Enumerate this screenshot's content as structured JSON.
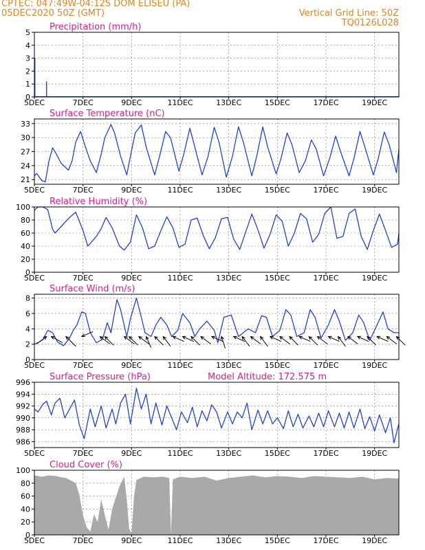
{
  "header": {
    "left_line1": "CPTEC:   047:49W-04:12S   DOM ELISEU (PA)",
    "left_line2": "05DEC2020 50Z (GMT)",
    "right_line1": "Vertical Grid Line: 50Z",
    "right_line2": "TQ0126L028"
  },
  "colors": {
    "header": "#e8821e",
    "panel_title": "#e5198a",
    "line": "#1f3fe0",
    "cloud": "#a9a9a9",
    "grid": "#777777",
    "wind_arrow": "#000000"
  },
  "chart_data": [
    {
      "id": "precip",
      "type": "bar",
      "title": "Precipitation (mm/h)",
      "ylim": [
        0,
        5
      ],
      "yticks": [
        0,
        1,
        2,
        3,
        4,
        5
      ],
      "xlim": [
        0,
        15
      ],
      "xtick_labels": [
        "5DEC",
        "7DEC",
        "9DEC",
        "11DEC",
        "13DEC",
        "15DEC",
        "17DEC",
        "19DEC"
      ],
      "xtick_positions": [
        0,
        2,
        4,
        6,
        8,
        10,
        12,
        14
      ],
      "x": [
        0.02,
        0.5,
        12.0
      ],
      "values": [
        3.0,
        1.2,
        0.08
      ]
    },
    {
      "id": "temp",
      "type": "line",
      "title": "Surface Temperature (nC)",
      "ylim": [
        20,
        34
      ],
      "yticks": [
        21,
        24,
        27,
        30,
        33
      ],
      "xlim": [
        0,
        15
      ],
      "xtick_labels": [
        "5DEC",
        "7DEC",
        "9DEC",
        "11DEC",
        "13DEC",
        "15DEC",
        "17DEC",
        "19DEC"
      ],
      "xtick_positions": [
        0,
        2,
        4,
        6,
        8,
        10,
        12,
        14
      ],
      "x": [
        0,
        0.1,
        0.3,
        0.45,
        0.6,
        0.75,
        0.9,
        1.1,
        1.4,
        1.55,
        1.7,
        1.9,
        2.1,
        2.3,
        2.55,
        2.75,
        2.9,
        3.15,
        3.3,
        3.55,
        3.8,
        3.95,
        4.15,
        4.4,
        4.6,
        4.95,
        5.15,
        5.4,
        5.6,
        5.95,
        6.15,
        6.4,
        6.6,
        6.9,
        7.15,
        7.4,
        7.6,
        7.9,
        8.15,
        8.4,
        8.6,
        8.95,
        9.15,
        9.4,
        9.6,
        9.95,
        10.15,
        10.4,
        10.6,
        10.9,
        11.15,
        11.4,
        11.6,
        11.9,
        12.15,
        12.4,
        12.6,
        12.95,
        13.15,
        13.4,
        13.6,
        13.95,
        14.15,
        14.4,
        14.6,
        14.9,
        15.0
      ],
      "values": [
        21.8,
        22.3,
        20.8,
        20.5,
        25.0,
        27.8,
        26.5,
        24.5,
        23.0,
        25.0,
        29.0,
        31.3,
        28.0,
        25.0,
        22.5,
        26.5,
        30.0,
        32.8,
        31.0,
        26.0,
        22.0,
        26.0,
        31.0,
        32.7,
        28.0,
        22.0,
        26.0,
        31.3,
        30.0,
        22.8,
        26.5,
        32.0,
        28.0,
        22.0,
        26.0,
        32.2,
        29.0,
        21.5,
        26.0,
        32.3,
        29.0,
        21.8,
        26.0,
        32.3,
        28.0,
        22.2,
        25.5,
        31.0,
        28.5,
        22.5,
        25.0,
        29.5,
        27.5,
        21.8,
        25.5,
        30.3,
        27.0,
        21.8,
        25.5,
        31.3,
        28.0,
        22.0,
        25.5,
        31.2,
        28.5,
        22.5,
        27.5
      ]
    },
    {
      "id": "rh",
      "type": "line",
      "title": "Relative Humidity (%)",
      "ylim": [
        0,
        100
      ],
      "yticks": [
        0,
        20,
        40,
        60,
        80,
        100
      ],
      "xlim": [
        0,
        15
      ],
      "xtick_labels": [
        "5DEC",
        "7DEC",
        "9DEC",
        "11DEC",
        "13DEC",
        "15DEC",
        "17DEC",
        "19DEC"
      ],
      "xtick_positions": [
        0,
        2,
        4,
        6,
        8,
        10,
        12,
        14
      ],
      "x": [
        0,
        0.15,
        0.35,
        0.55,
        0.75,
        0.85,
        1.1,
        1.45,
        1.7,
        2.0,
        2.2,
        2.55,
        2.75,
        2.95,
        3.2,
        3.5,
        3.7,
        3.95,
        4.2,
        4.45,
        4.7,
        4.95,
        5.2,
        5.45,
        5.7,
        5.95,
        6.2,
        6.45,
        6.7,
        6.95,
        7.2,
        7.45,
        7.7,
        7.95,
        8.2,
        8.45,
        8.7,
        8.95,
        9.2,
        9.45,
        9.7,
        9.95,
        10.2,
        10.45,
        10.7,
        10.95,
        11.2,
        11.45,
        11.7,
        11.95,
        12.2,
        12.45,
        12.7,
        12.95,
        13.2,
        13.45,
        13.7,
        13.95,
        14.2,
        14.45,
        14.7,
        14.95,
        15.0
      ],
      "values": [
        95,
        100,
        100,
        96,
        66,
        60,
        70,
        84,
        92,
        64,
        40,
        55,
        67,
        84,
        68,
        40,
        34,
        46,
        88,
        68,
        36,
        40,
        63,
        85,
        68,
        38,
        43,
        80,
        83,
        56,
        36,
        53,
        82,
        84,
        51,
        35,
        62,
        89,
        65,
        37,
        58,
        88,
        78,
        40,
        60,
        90,
        82,
        46,
        58,
        90,
        100,
        52,
        55,
        90,
        97,
        55,
        35,
        64,
        89,
        64,
        38,
        43,
        60
      ]
    },
    {
      "id": "wind",
      "type": "line",
      "title": "Surface Wind (m/s)",
      "ylim": [
        0,
        8.5
      ],
      "yticks": [
        0,
        2,
        4,
        6,
        8
      ],
      "xlim": [
        0,
        15
      ],
      "xtick_labels": [
        "5DEC",
        "7DEC",
        "9DEC",
        "11DEC",
        "13DEC",
        "15DEC",
        "17DEC",
        "19DEC"
      ],
      "xtick_positions": [
        0,
        2,
        4,
        6,
        8,
        10,
        12,
        14
      ],
      "x": [
        0,
        0.15,
        0.35,
        0.55,
        0.75,
        0.95,
        1.2,
        1.45,
        1.6,
        1.75,
        1.95,
        2.1,
        2.3,
        2.55,
        2.8,
        3.0,
        3.15,
        3.4,
        3.55,
        3.8,
        3.95,
        4.2,
        4.4,
        4.55,
        4.8,
        5.0,
        5.2,
        5.45,
        5.65,
        5.9,
        6.1,
        6.4,
        6.6,
        6.8,
        7.1,
        7.4,
        7.55,
        7.8,
        8.1,
        8.4,
        8.6,
        8.8,
        9.1,
        9.35,
        9.55,
        9.8,
        10.1,
        10.35,
        10.55,
        10.8,
        11.1,
        11.35,
        11.55,
        11.8,
        12.1,
        12.35,
        12.55,
        12.8,
        13.1,
        13.35,
        13.55,
        13.8,
        14.1,
        14.35,
        14.55,
        14.8,
        15.0
      ],
      "values": [
        2.0,
        2.2,
        2.6,
        3.8,
        3.5,
        2.3,
        1.8,
        2.8,
        3.8,
        4.5,
        6.2,
        6.0,
        3.5,
        2.2,
        2.6,
        4.8,
        3.5,
        7.8,
        6.5,
        3.0,
        5.3,
        8.0,
        5.5,
        3.5,
        3.0,
        4.5,
        5.5,
        4.5,
        3.0,
        3.8,
        6.0,
        4.8,
        3.0,
        4.0,
        5.0,
        3.8,
        2.2,
        5.5,
        5.8,
        3.0,
        3.5,
        4.0,
        3.5,
        5.7,
        5.5,
        3.0,
        3.8,
        6.5,
        5.8,
        3.0,
        3.5,
        6.5,
        5.5,
        2.8,
        4.5,
        6.5,
        5.0,
        2.5,
        3.5,
        5.8,
        4.8,
        2.5,
        4.5,
        6.2,
        4.0,
        3.5,
        3.5
      ],
      "arrows_x": [
        0.5,
        0.7,
        1.3,
        1.95,
        2.7,
        2.9,
        3.7,
        3.9,
        4.3,
        4.6,
        4.95,
        5.3,
        5.7,
        6.1,
        6.45,
        6.85,
        7.3,
        7.7,
        8.2,
        8.55,
        8.9,
        9.3,
        9.7,
        10.1,
        10.5,
        10.9,
        11.3,
        11.65,
        12.1,
        12.5,
        12.9,
        13.3,
        13.7,
        14.1,
        14.5,
        14.9
      ],
      "arrows_u": [
        -0.8,
        0.9,
        0.8,
        0.9,
        0.8,
        0.7,
        0.8,
        0.7,
        0.8,
        0.4,
        0.7,
        0.6,
        0.9,
        0.9,
        0.7,
        0.8,
        0.9,
        0.3,
        0.9,
        0.6,
        0.8,
        0.6,
        0.9,
        0.8,
        0.7,
        0.9,
        0.7,
        0.8,
        0.9,
        0.6,
        0.8,
        0.9,
        0.7,
        0.9,
        0.8,
        0.7
      ],
      "arrows_v": [
        -0.6,
        -0.5,
        -0.8,
        0.4,
        -0.6,
        -0.7,
        -0.6,
        -0.7,
        -0.6,
        -0.9,
        -0.7,
        -0.8,
        -0.4,
        -0.4,
        -0.7,
        -0.6,
        -0.4,
        -0.95,
        -0.4,
        -0.8,
        -0.6,
        -0.8,
        -0.4,
        -0.6,
        -0.7,
        -0.4,
        -0.7,
        -0.6,
        -0.4,
        -0.8,
        -0.6,
        -0.4,
        -0.7,
        -0.4,
        -0.6,
        -0.7
      ]
    },
    {
      "id": "pressure",
      "type": "line",
      "title": "Surface Pressure (hPa)",
      "annotation": "Model Altitude: 172.575 m",
      "ylim": [
        985,
        996
      ],
      "yticks": [
        986,
        988,
        990,
        992,
        994,
        996
      ],
      "xlim": [
        0,
        15
      ],
      "xtick_labels": [
        "5DEC",
        "7DEC",
        "9DEC",
        "11DEC",
        "13DEC",
        "15DEC",
        "17DEC",
        "19DEC"
      ],
      "xtick_positions": [
        0,
        2,
        4,
        6,
        8,
        10,
        12,
        14
      ],
      "x": [
        0,
        0.15,
        0.35,
        0.5,
        0.7,
        0.85,
        1.05,
        1.25,
        1.45,
        1.65,
        1.85,
        2.05,
        2.3,
        2.5,
        2.75,
        2.95,
        3.2,
        3.35,
        3.55,
        3.75,
        3.95,
        4.2,
        4.4,
        4.6,
        4.8,
        5.0,
        5.25,
        5.45,
        5.65,
        5.85,
        6.05,
        6.3,
        6.5,
        6.7,
        6.9,
        7.1,
        7.3,
        7.5,
        7.7,
        7.95,
        8.15,
        8.35,
        8.55,
        8.75,
        8.95,
        9.2,
        9.4,
        9.6,
        9.8,
        10.0,
        10.25,
        10.45,
        10.65,
        10.85,
        11.05,
        11.3,
        11.5,
        11.7,
        11.9,
        12.1,
        12.35,
        12.55,
        12.75,
        12.95,
        13.15,
        13.4,
        13.6,
        13.8,
        14.0,
        14.2,
        14.45,
        14.65,
        14.8,
        15.0
      ],
      "values": [
        991.5,
        991.0,
        992.3,
        992.8,
        990.5,
        992.5,
        993.3,
        990.0,
        991.5,
        993.0,
        988.8,
        986.5,
        991.5,
        988.5,
        992.0,
        988.3,
        991.5,
        989.0,
        992.5,
        994.0,
        989.0,
        995.0,
        991.5,
        994.0,
        989.0,
        992.5,
        988.8,
        992.0,
        990.0,
        988.0,
        991.0,
        989.2,
        991.8,
        988.5,
        991.2,
        989.5,
        992.2,
        991.0,
        988.3,
        991.0,
        989.0,
        991.0,
        990.0,
        992.5,
        988.0,
        991.3,
        989.0,
        991.2,
        989.0,
        990.0,
        988.2,
        991.2,
        988.5,
        990.6,
        988.3,
        990.3,
        988.5,
        990.8,
        988.5,
        991.2,
        988.5,
        990.8,
        988.3,
        991.0,
        988.3,
        991.5,
        988.2,
        990.2,
        987.8,
        990.5,
        987.5,
        990.0,
        985.8,
        989.0
      ]
    },
    {
      "id": "cloud",
      "type": "area",
      "title": "Cloud Cover (%)",
      "ylim": [
        0,
        100
      ],
      "yticks": [
        0,
        20,
        40,
        60,
        80,
        100
      ],
      "xlim": [
        0,
        15
      ],
      "xtick_labels": [
        "5DEC",
        "7DEC",
        "9DEC",
        "11DEC",
        "13DEC",
        "15DEC",
        "17DEC",
        "19DEC"
      ],
      "xtick_positions": [
        0,
        2,
        4,
        6,
        8,
        10,
        12,
        14
      ],
      "x": [
        0,
        0.3,
        0.6,
        0.9,
        1.1,
        1.3,
        1.5,
        1.7,
        1.85,
        2.0,
        2.15,
        2.3,
        2.45,
        2.6,
        2.75,
        2.9,
        3.05,
        3.2,
        3.35,
        3.5,
        3.7,
        3.8,
        3.9,
        4.0,
        4.1,
        4.2,
        4.5,
        4.9,
        5.3,
        5.55,
        5.62,
        5.7,
        6.0,
        6.5,
        7.0,
        7.5,
        8.0,
        8.5,
        9.0,
        9.5,
        10.0,
        10.5,
        11.0,
        11.5,
        12.0,
        12.5,
        13.0,
        13.5,
        14.0,
        14.5,
        15.0
      ],
      "values": [
        92,
        90,
        92,
        91,
        89,
        88,
        84,
        80,
        62,
        30,
        12,
        5,
        32,
        20,
        55,
        30,
        8,
        40,
        58,
        75,
        90,
        55,
        10,
        2,
        60,
        85,
        90,
        89,
        90,
        88,
        2,
        86,
        90,
        88,
        90,
        84,
        88,
        90,
        92,
        89,
        91,
        90,
        88,
        91,
        90,
        89,
        88,
        90,
        86,
        88,
        87
      ]
    }
  ]
}
